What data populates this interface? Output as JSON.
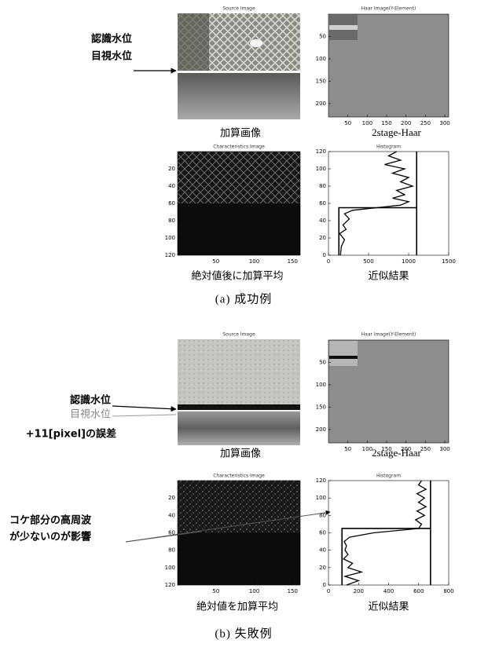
{
  "parts": [
    {
      "caption": "(a) 成功例",
      "annotations": [
        "認識水位",
        "目視水位"
      ],
      "source": {
        "title": "Source Image",
        "label": "加算画像"
      },
      "haar": {
        "title": "Haar Image(Y-Element)",
        "label": "2stage-Haar",
        "xlim": [
          0,
          310
        ],
        "ylim": [
          0,
          230
        ],
        "xticks": [
          50,
          100,
          150,
          200,
          250,
          300
        ],
        "yticks": [
          50,
          100,
          150,
          200
        ]
      },
      "characteristics": {
        "title": "Characteristics Image",
        "label": "絶対値後に加算平均",
        "xlim": [
          0,
          160
        ],
        "ylim": [
          0,
          120
        ],
        "xticks": [
          50,
          100,
          150
        ],
        "yticks": [
          20,
          40,
          60,
          80,
          100,
          120
        ]
      },
      "histogram": {
        "title": "Histogram",
        "label": "近似結果",
        "xlim": [
          0,
          1500
        ],
        "ylim": [
          0,
          120
        ],
        "xticks": [
          0,
          500,
          1000,
          1500
        ],
        "yticks": [
          0,
          20,
          40,
          60,
          80,
          100,
          120
        ]
      }
    },
    {
      "caption": "(b) 失敗例",
      "annotations": [
        "認識水位",
        "目視水位",
        "+11[pixel]の誤差",
        "コケ部分の高周波",
        "が少ないのが影響"
      ],
      "source": {
        "title": "Source Image",
        "label": "加算画像"
      },
      "haar": {
        "title": "Haar Image(Y-Element)",
        "label": "2stage-Haar",
        "xlim": [
          0,
          310
        ],
        "ylim": [
          0,
          230
        ],
        "xticks": [
          50,
          100,
          150,
          200,
          250,
          300
        ],
        "yticks": [
          50,
          100,
          150,
          200
        ]
      },
      "characteristics": {
        "title": "Characteristics Image",
        "label": "絶対値を加算平均",
        "xlim": [
          0,
          160
        ],
        "ylim": [
          0,
          120
        ],
        "xticks": [
          50,
          100,
          150
        ],
        "yticks": [
          20,
          40,
          60,
          80,
          100,
          120
        ]
      },
      "histogram": {
        "title": "Histogram",
        "label": "近似結果",
        "xlim": [
          0,
          800
        ],
        "ylim": [
          0,
          120
        ],
        "xticks": [
          0,
          200,
          400,
          600,
          800
        ],
        "yticks": [
          0,
          20,
          40,
          60,
          80,
          100,
          120
        ]
      }
    }
  ]
}
